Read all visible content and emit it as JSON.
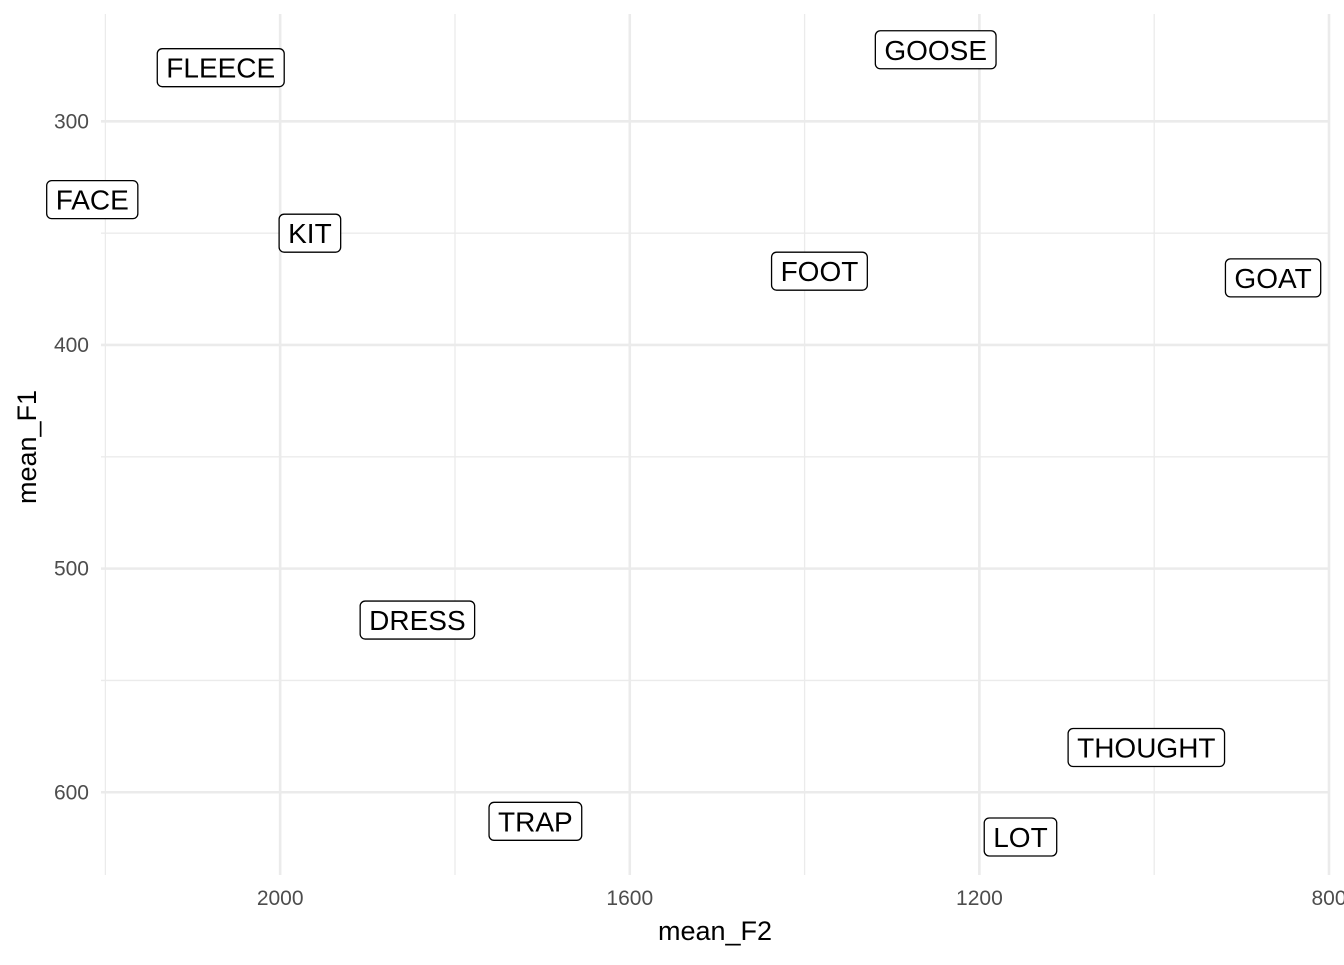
{
  "chart_data": {
    "type": "scatter",
    "xlabel": "mean_F2",
    "ylabel": "mean_F1",
    "x_reversed": true,
    "y_reversed": true,
    "xlim": [
      2205,
      800
    ],
    "ylim": [
      252,
      637
    ],
    "x_major_ticks": [
      2000,
      1600,
      1200,
      800
    ],
    "x_minor_ticks": [
      2200,
      1800,
      1400,
      1000
    ],
    "y_major_ticks": [
      300,
      400,
      500,
      600
    ],
    "y_minor_ticks": [
      350,
      450,
      550
    ],
    "tick_labels_x": [
      "2000",
      "1600",
      "1200",
      "800"
    ],
    "tick_labels_y": [
      "300",
      "400",
      "500",
      "600"
    ],
    "grid": true,
    "legend": "none",
    "geom": "label",
    "points": [
      {
        "label": "FLEECE",
        "x": 2068,
        "y": 276
      },
      {
        "label": "GOOSE",
        "x": 1250,
        "y": 268
      },
      {
        "label": "FACE",
        "x": 2215,
        "y": 335
      },
      {
        "label": "KIT",
        "x": 1966,
        "y": 350
      },
      {
        "label": "FOOT",
        "x": 1383,
        "y": 367
      },
      {
        "label": "GOAT",
        "x": 864,
        "y": 370
      },
      {
        "label": "DRESS",
        "x": 1843,
        "y": 523
      },
      {
        "label": "THOUGHT",
        "x": 1009,
        "y": 580
      },
      {
        "label": "TRAP",
        "x": 1708,
        "y": 613
      },
      {
        "label": "LOT",
        "x": 1153,
        "y": 620
      }
    ]
  }
}
